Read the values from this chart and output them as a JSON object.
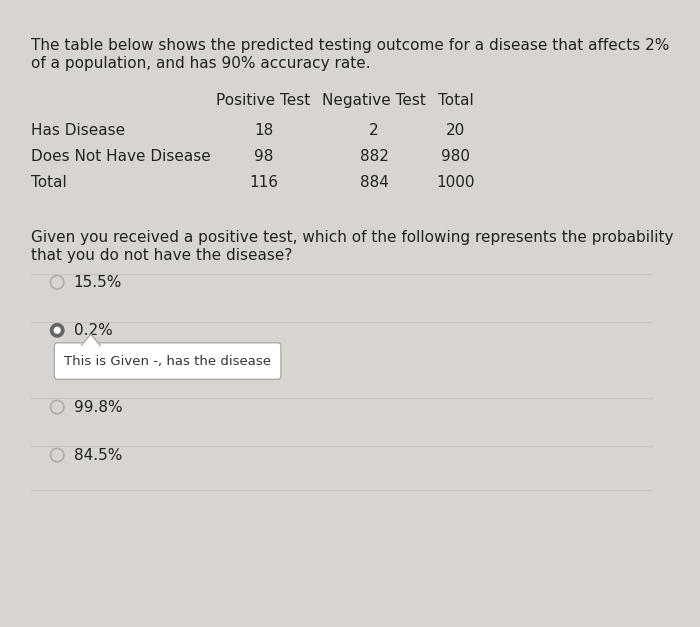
{
  "background_color": "#d8d5d0",
  "inner_background": "#edeae6",
  "title_text1": "The table below shows the predicted testing outcome for a disease that affects 2%",
  "title_text2": "of a population, and has 90% accuracy rate.",
  "table_header": [
    "Positive Test",
    "Negative Test",
    "Total"
  ],
  "table_rows": [
    [
      "Has Disease",
      "18",
      "2",
      "20"
    ],
    [
      "Does Not Have Disease",
      "98",
      "882",
      "980"
    ],
    [
      "Total",
      "116",
      "884",
      "1000"
    ]
  ],
  "question_text1": "Given you received a positive test, which of the following represents the probability",
  "question_text2": "that you do not have the disease?",
  "options": [
    {
      "label": "15.5%",
      "selected": false
    },
    {
      "label": "0.2%",
      "selected": true
    },
    {
      "label": "99.8%",
      "selected": false
    },
    {
      "label": "84.5%",
      "selected": false
    }
  ],
  "tooltip_text": "This is Given -, has the disease",
  "font_size": 11.0,
  "font_size_small": 10.0
}
